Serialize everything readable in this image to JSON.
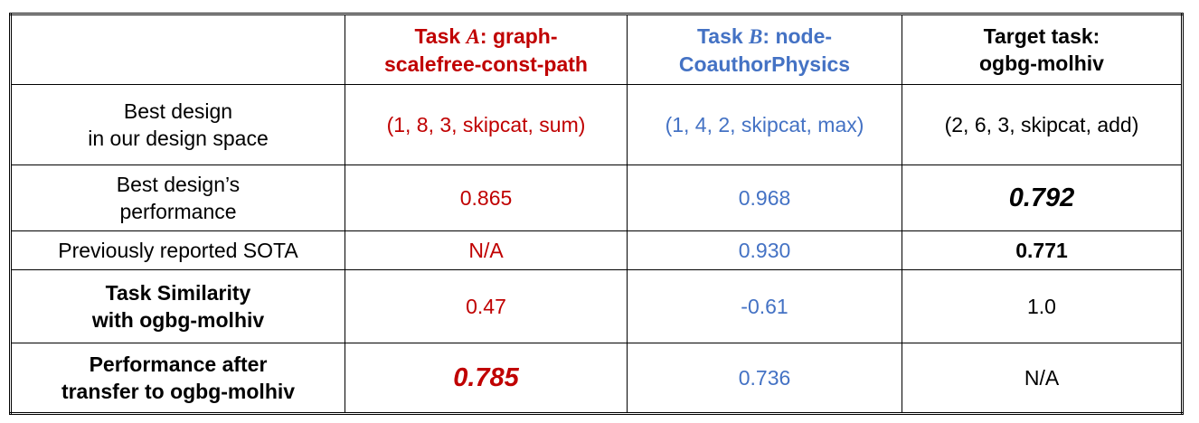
{
  "header": {
    "task_a": {
      "prefix": "Task ",
      "var": "A",
      "suffix": ": graph-",
      "line2": "scalefree-const-path"
    },
    "task_b": {
      "prefix": "Task ",
      "var": "B",
      "suffix": ": node-",
      "line2": "CoauthorPhysics"
    },
    "target": {
      "line1": "Target task:",
      "line2": "ogbg-molhiv"
    }
  },
  "rows": [
    {
      "label1": "Best design",
      "label2": "in our design space",
      "a": "(1, 8, 3, skipcat, sum)",
      "b": "(1, 4, 2, skipcat, max)",
      "t": "(2, 6, 3, skipcat, add)"
    },
    {
      "label1": "Best design’s",
      "label2": "performance",
      "a": "0.865",
      "b": "0.968",
      "t": "0.792"
    },
    {
      "label1": "Previously reported SOTA",
      "a": "N/A",
      "b": "0.930",
      "t": "0.771"
    },
    {
      "label1": "Task Similarity",
      "label2": "with ogbg-molhiv",
      "a": "0.47",
      "b": "-0.61",
      "t": "1.0"
    },
    {
      "label1": "Performance after",
      "label2": "transfer to ogbg-molhiv",
      "a": "0.785",
      "b": "0.736",
      "t": "N/A"
    }
  ],
  "colors": {
    "task_a": "#c00000",
    "task_b": "#4472c4",
    "target": "#000000"
  }
}
